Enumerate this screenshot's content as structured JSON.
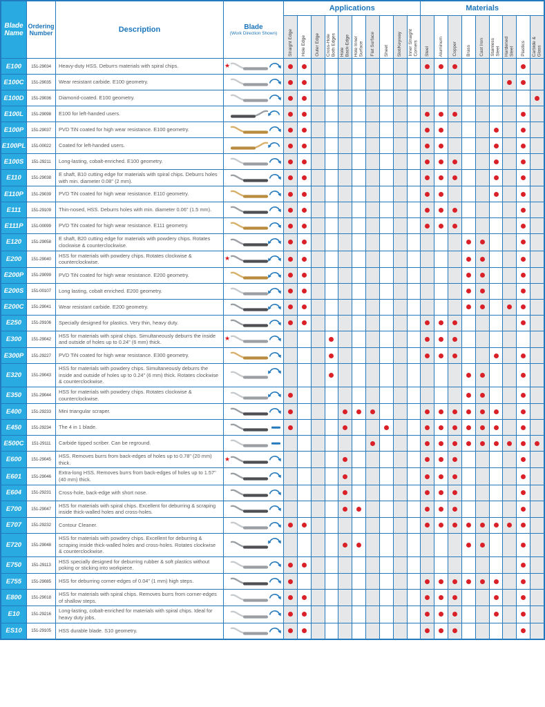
{
  "header": {
    "blade_name": "Blade\nName",
    "ordering_number": "Ordering\nNumber",
    "description": "Description",
    "blade_title": "Blade",
    "blade_subtitle": "(Work Direction Shown)",
    "applications_group": "Applications",
    "materials_group": "Materials",
    "application_columns": [
      "Straight Edge",
      "Hole Edge",
      "Outer Edge",
      "Cross-Hole\nBoth Edges",
      "Hole\nBack-Edge",
      "Hole Inner\nSurface",
      "Flat Surface",
      "Sheet",
      "Slot/Keyway",
      "Inner Straight\nCorners"
    ],
    "material_columns": [
      "Steel",
      "Aluminum",
      "Copper",
      "Brass",
      "Cast Iron",
      "Stainless\nSteel",
      "Hardened\nSteel",
      "Plastics",
      "Carbide &\nGlass"
    ]
  },
  "colors": {
    "grid_blue": "#2279bd",
    "header_text_blue": "#1b75bb",
    "name_column_cyan": "#29abe2",
    "dot_red": "#da2128",
    "star_red": "#e0161b",
    "shaded_column": "#e6e7e8",
    "blade_gold": "#b98b3e",
    "blade_silver": "#9b9fa4",
    "blade_dark": "#4d4f52"
  },
  "legend": {
    "star_icon_meaning": "star-marker",
    "arrow_types": [
      "arc",
      "both",
      "line"
    ]
  },
  "rows": [
    {
      "name": "E100",
      "order": "151-29034",
      "description": "Heavy-duty HSS. Deburrs materials with spiral chips.",
      "star": true,
      "blade": "silver",
      "mirrored": false,
      "arrow": "arc",
      "applications": [
        "Straight Edge",
        "Hole Edge"
      ],
      "materials": [
        "Steel",
        "Aluminum",
        "Copper",
        "Plastics"
      ]
    },
    {
      "name": "E100C",
      "order": "151-29035",
      "description": "Wear resistant carbide. E100 geometry.",
      "star": false,
      "blade": "silver",
      "mirrored": false,
      "arrow": "arc",
      "applications": [
        "Straight Edge",
        "Hole Edge"
      ],
      "materials": [
        "Hardened Steel",
        "Plastics"
      ]
    },
    {
      "name": "E100D",
      "order": "151-29036",
      "description": "Diamond-coated. E100 geometry.",
      "star": false,
      "blade": "silver",
      "mirrored": false,
      "arrow": "arc",
      "applications": [
        "Straight Edge",
        "Hole Edge"
      ],
      "materials": [
        "Carbide & Glass"
      ]
    },
    {
      "name": "E100L",
      "order": "151-29098",
      "description": "E100 for left-handed users.",
      "star": false,
      "blade": "dark",
      "mirrored": true,
      "arrow": "arc",
      "applications": [
        "Straight Edge",
        "Hole Edge"
      ],
      "materials": [
        "Steel",
        "Aluminum",
        "Copper",
        "Plastics"
      ]
    },
    {
      "name": "E100P",
      "order": "151-29037",
      "description": "PVD TiN coated for high wear resistance. E100 geometry.",
      "star": false,
      "blade": "gold",
      "mirrored": false,
      "arrow": "arc",
      "applications": [
        "Straight Edge",
        "Hole Edge"
      ],
      "materials": [
        "Steel",
        "Aluminum",
        "Stainless Steel",
        "Plastics"
      ]
    },
    {
      "name": "E100PL",
      "order": "151-00022",
      "description": "Coated for left-handed users.",
      "star": false,
      "blade": "gold",
      "mirrored": true,
      "arrow": "arc",
      "applications": [
        "Straight Edge",
        "Hole Edge"
      ],
      "materials": [
        "Steel",
        "Aluminum",
        "Stainless Steel",
        "Plastics"
      ]
    },
    {
      "name": "E100S",
      "order": "151-29211",
      "description": "Long-lasting, cobalt-enriched. E100 geometry.",
      "star": false,
      "blade": "silver",
      "mirrored": false,
      "arrow": "arc",
      "applications": [
        "Straight Edge",
        "Hole Edge"
      ],
      "materials": [
        "Steel",
        "Aluminum",
        "Copper",
        "Stainless Steel",
        "Plastics"
      ]
    },
    {
      "name": "E110",
      "order": "151-29038",
      "description": "E shaft, B10 cutting edge for materials with spiral chips. Deburrs holes with min. diameter 0.08\" (2 mm).",
      "star": false,
      "blade": "dark",
      "mirrored": false,
      "arrow": "arc",
      "applications": [
        "Straight Edge",
        "Hole Edge"
      ],
      "materials": [
        "Steel",
        "Aluminum",
        "Copper",
        "Stainless Steel",
        "Plastics"
      ]
    },
    {
      "name": "E110P",
      "order": "151-29039",
      "description": "PVD TiN coated for high wear resistance. E110 geometry.",
      "star": false,
      "blade": "gold",
      "mirrored": false,
      "arrow": "arc",
      "applications": [
        "Straight Edge",
        "Hole Edge"
      ],
      "materials": [
        "Steel",
        "Aluminum",
        "Stainless Steel",
        "Plastics"
      ]
    },
    {
      "name": "E111",
      "order": "151-29109",
      "description": "Thin-nosed, HSS. Deburrs holes with min. diameter 0.06\" (1.5 mm).",
      "star": false,
      "blade": "dark",
      "mirrored": false,
      "arrow": "arc",
      "applications": [
        "Straight Edge",
        "Hole Edge"
      ],
      "materials": [
        "Steel",
        "Aluminum",
        "Copper",
        "Plastics"
      ]
    },
    {
      "name": "E111P",
      "order": "151-00099",
      "description": "PVD TiN coated for high wear resistance. E111 geometry.",
      "star": false,
      "blade": "gold",
      "mirrored": false,
      "arrow": "arc",
      "applications": [
        "Straight Edge",
        "Hole Edge"
      ],
      "materials": [
        "Steel",
        "Aluminum",
        "Copper",
        "Plastics"
      ]
    },
    {
      "name": "E120",
      "order": "151-29058",
      "description": "E shaft, B20 cutting edge for materials with powdery chips. Rotates clockwise & counterclockwise.",
      "star": false,
      "blade": "dark",
      "mirrored": false,
      "arrow": "both",
      "applications": [
        "Straight Edge",
        "Hole Edge"
      ],
      "materials": [
        "Brass",
        "Cast Iron",
        "Plastics"
      ]
    },
    {
      "name": "E200",
      "order": "151-29040",
      "description": "HSS for materials with powdery chips. Rotates clockwise & counterclockwise.",
      "star": true,
      "blade": "dark",
      "mirrored": false,
      "arrow": "both",
      "applications": [
        "Straight Edge",
        "Hole Edge"
      ],
      "materials": [
        "Brass",
        "Cast Iron",
        "Plastics"
      ]
    },
    {
      "name": "E200P",
      "order": "151-29099",
      "description": "PVD TiN coated for high wear resistance. E200 geometry.",
      "star": false,
      "blade": "gold",
      "mirrored": false,
      "arrow": "both",
      "applications": [
        "Straight Edge",
        "Hole Edge"
      ],
      "materials": [
        "Brass",
        "Cast Iron",
        "Plastics"
      ]
    },
    {
      "name": "E200S",
      "order": "151-00107",
      "description": "Long lasting, cobalt enriched. E200 geometry.",
      "star": false,
      "blade": "silver",
      "mirrored": false,
      "arrow": "both",
      "applications": [
        "Straight Edge",
        "Hole Edge"
      ],
      "materials": [
        "Brass",
        "Cast Iron",
        "Plastics"
      ]
    },
    {
      "name": "E200C",
      "order": "151-29041",
      "description": "Wear resistant carbide. E200 geometry.",
      "star": false,
      "blade": "dark",
      "mirrored": false,
      "arrow": "both",
      "applications": [
        "Straight Edge",
        "Hole Edge"
      ],
      "materials": [
        "Brass",
        "Cast Iron",
        "Hardened Steel",
        "Plastics"
      ]
    },
    {
      "name": "E250",
      "order": "151-29106",
      "description": "Specially designed for plastics. Very thin, heavy duty.",
      "star": false,
      "blade": "dark",
      "mirrored": false,
      "arrow": "arc",
      "applications": [
        "Straight Edge",
        "Hole Edge"
      ],
      "materials": [
        "Steel",
        "Aluminum",
        "Copper",
        "Plastics"
      ]
    },
    {
      "name": "E300",
      "order": "151-29042",
      "description": "HSS for materials with spiral chips. Simultaneously deburrs the inside and outside of holes up to 0.24\" (6 mm) thick.",
      "star": true,
      "blade": "silver",
      "mirrored": false,
      "arrow": "arc",
      "applications": [
        "Cross-Hole Both Edges"
      ],
      "materials": [
        "Steel",
        "Aluminum",
        "Copper"
      ]
    },
    {
      "name": "E300P",
      "order": "151-29227",
      "description": "PVD TiN coated for high wear resistance. E300 geometry.",
      "star": false,
      "blade": "gold",
      "mirrored": false,
      "arrow": "arc",
      "applications": [
        "Cross-Hole Both Edges"
      ],
      "materials": [
        "Steel",
        "Aluminum",
        "Copper",
        "Stainless Steel",
        "Plastics"
      ]
    },
    {
      "name": "E320",
      "order": "151-29043",
      "description": "HSS for materials with powdery chips. Simultaneously deburrs the inside and outside of holes up to 0.24\" (6 mm) thick. Rotates clockwise & counterclockwise.",
      "star": false,
      "blade": "silver",
      "mirrored": false,
      "arrow": "both",
      "applications": [
        "Cross-Hole Both Edges"
      ],
      "materials": [
        "Brass",
        "Cast Iron",
        "Plastics"
      ]
    },
    {
      "name": "E350",
      "order": "151-29044",
      "description": "HSS for materials with powdery chips. Rotates clockwise & counterclockwise.",
      "star": false,
      "blade": "silver",
      "mirrored": false,
      "arrow": "both",
      "applications": [
        "Straight Edge"
      ],
      "materials": [
        "Brass",
        "Cast Iron",
        "Plastics"
      ]
    },
    {
      "name": "E400",
      "order": "151-29233",
      "description": "Mini triangular scraper.",
      "star": false,
      "blade": "dark",
      "mirrored": false,
      "arrow": "arc",
      "applications": [
        "Straight Edge",
        "Hole Back-Edge",
        "Hole Inner Surface",
        "Flat Surface"
      ],
      "materials": [
        "Steel",
        "Aluminum",
        "Copper",
        "Brass",
        "Cast Iron",
        "Stainless Steel",
        "Plastics"
      ]
    },
    {
      "name": "E450",
      "order": "151-29234",
      "description": "The 4 in 1 blade.",
      "star": false,
      "blade": "dark",
      "mirrored": false,
      "arrow": "line",
      "applications": [
        "Straight Edge",
        "Hole Back-Edge",
        "Sheet"
      ],
      "materials": [
        "Steel",
        "Aluminum",
        "Copper",
        "Brass",
        "Cast Iron",
        "Stainless Steel",
        "Plastics"
      ]
    },
    {
      "name": "E500C",
      "order": "151-29111",
      "description": "Carbide tipped scriber. Can be reground.",
      "star": false,
      "blade": "silver",
      "mirrored": false,
      "arrow": "line",
      "applications": [
        "Flat Surface"
      ],
      "materials": [
        "Steel",
        "Aluminum",
        "Copper",
        "Brass",
        "Cast Iron",
        "Stainless Steel",
        "Hardened Steel",
        "Plastics",
        "Carbide & Glass"
      ]
    },
    {
      "name": "E600",
      "order": "151-29045",
      "description": "HSS. Removes burrs from back-edges of holes up to 0.78\" (20 mm) thick.",
      "star": true,
      "blade": "dark",
      "mirrored": false,
      "arrow": "arc",
      "applications": [
        "Hole Back-Edge"
      ],
      "materials": [
        "Steel",
        "Aluminum",
        "Copper",
        "Plastics"
      ]
    },
    {
      "name": "E601",
      "order": "151-29046",
      "description": "Extra-long HSS. Removes burrs from back-edges of holes up to 1.57\" (40 mm) thick.",
      "star": false,
      "blade": "dark",
      "mirrored": false,
      "arrow": "arc",
      "applications": [
        "Hole Back-Edge"
      ],
      "materials": [
        "Steel",
        "Aluminum",
        "Copper",
        "Plastics"
      ]
    },
    {
      "name": "E604",
      "order": "151-29231",
      "description": "Cross-hole, back-edge with short nose.",
      "star": false,
      "blade": "dark",
      "mirrored": false,
      "arrow": "arc",
      "applications": [
        "Hole Back-Edge"
      ],
      "materials": [
        "Steel",
        "Aluminum",
        "Copper",
        "Plastics"
      ]
    },
    {
      "name": "E700",
      "order": "151-29047",
      "description": "HSS for materials with spiral chips. Excellent for deburring & scraping inside thick-walled holes and cross-holes.",
      "star": false,
      "blade": "dark",
      "mirrored": false,
      "arrow": "arc",
      "applications": [
        "Hole Back-Edge",
        "Hole Inner Surface"
      ],
      "materials": [
        "Steel",
        "Aluminum",
        "Copper",
        "Plastics"
      ]
    },
    {
      "name": "E707",
      "order": "151-29232",
      "description": "Contour Cleaner.",
      "star": false,
      "blade": "silver",
      "mirrored": false,
      "arrow": "arc",
      "applications": [
        "Straight Edge",
        "Hole Edge"
      ],
      "materials": [
        "Steel",
        "Aluminum",
        "Copper",
        "Brass",
        "Cast Iron",
        "Stainless Steel",
        "Hardened Steel",
        "Plastics"
      ]
    },
    {
      "name": "E720",
      "order": "151-29048",
      "description": "HSS for materials with powdery chips. Excellent for deburring & scraping inside thick-walled holes and cross-holes. Rotates clockwise & counterclockwise.",
      "star": false,
      "blade": "dark",
      "mirrored": false,
      "arrow": "both",
      "applications": [
        "Hole Back-Edge",
        "Hole Inner Surface"
      ],
      "materials": [
        "Brass",
        "Cast Iron",
        "Plastics"
      ]
    },
    {
      "name": "E750",
      "order": "151-29113",
      "description": "HSS specially designed for deburring rubber & soft plastics without poking or sticking into workpiece.",
      "star": false,
      "blade": "silver",
      "mirrored": false,
      "arrow": "arc",
      "applications": [
        "Straight Edge",
        "Hole Edge"
      ],
      "materials": [
        "Plastics"
      ]
    },
    {
      "name": "E755",
      "order": "151-29085",
      "description": "HSS for deburring corner-edges of 0.04\" (1 mm) high steps.",
      "star": false,
      "blade": "dark",
      "mirrored": false,
      "arrow": "arc",
      "applications": [
        "Straight Edge"
      ],
      "materials": [
        "Steel",
        "Aluminum",
        "Copper",
        "Brass",
        "Cast Iron",
        "Stainless Steel",
        "Plastics"
      ]
    },
    {
      "name": "E800",
      "order": "151-29018",
      "description": "HSS for materials with spiral chips. Removes burrs from corner-edges of shallow steps.",
      "star": false,
      "blade": "silver",
      "mirrored": false,
      "arrow": "arc",
      "applications": [
        "Straight Edge",
        "Hole Edge"
      ],
      "materials": [
        "Steel",
        "Aluminum",
        "Copper",
        "Stainless Steel",
        "Plastics"
      ]
    },
    {
      "name": "E10",
      "order": "151-29216",
      "description": "Long-lasting, cobalt-enriched for materials with spiral chips. Ideal for heavy duty jobs.",
      "star": false,
      "blade": "silver",
      "mirrored": false,
      "arrow": "arc",
      "applications": [
        "Straight Edge",
        "Hole Edge"
      ],
      "materials": [
        "Steel",
        "Aluminum",
        "Copper",
        "Stainless Steel",
        "Plastics"
      ]
    },
    {
      "name": "ES10",
      "order": "151-29105",
      "description": "HSS durable blade. S10 geometry.",
      "star": false,
      "blade": "silver",
      "mirrored": false,
      "arrow": "arc",
      "applications": [
        "Straight Edge",
        "Hole Edge"
      ],
      "materials": [
        "Steel",
        "Aluminum",
        "Copper",
        "Plastics"
      ]
    }
  ]
}
